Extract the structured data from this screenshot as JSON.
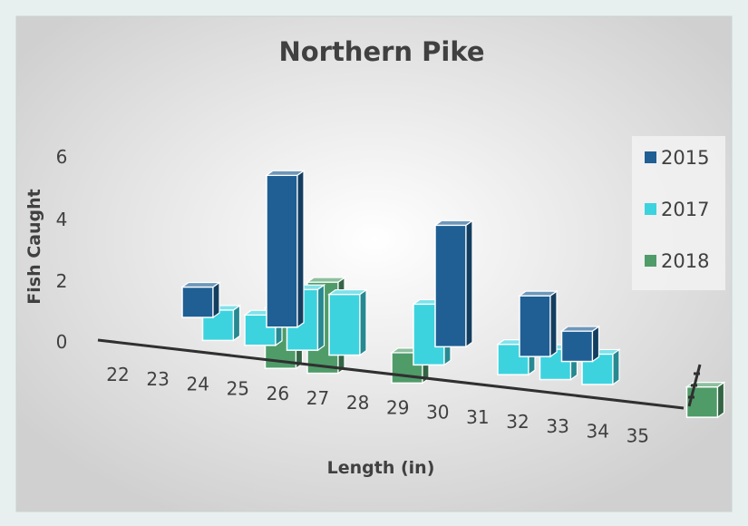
{
  "chart_data": {
    "type": "bar",
    "title": "Northern Pike",
    "xlabel": "Length (in)",
    "ylabel": "Fish Caught",
    "categories": [
      "22",
      "23",
      "24",
      "25",
      "26",
      "27",
      "28",
      "29",
      "30",
      "31",
      "32",
      "33",
      "34",
      "35"
    ],
    "series": [
      {
        "name": "2015",
        "color": "#1f5f94",
        "values": [
          1,
          0,
          5,
          0,
          0,
          0,
          4,
          0,
          2,
          1,
          0,
          0,
          0,
          0
        ]
      },
      {
        "name": "2017",
        "color": "#3cd3df",
        "values": [
          0,
          1,
          1,
          2,
          2,
          0,
          2,
          0,
          1,
          1,
          1,
          0,
          0,
          0
        ]
      },
      {
        "name": "2018",
        "color": "#4f9c69",
        "values": [
          0,
          0,
          0,
          2,
          3,
          0,
          1,
          0,
          0,
          0,
          0,
          0,
          0,
          1
        ]
      }
    ],
    "y_ticks": [
      "0",
      "2",
      "4",
      "6"
    ],
    "ylim": [
      0,
      6
    ],
    "legend_position": "right",
    "view": "3d-column"
  }
}
